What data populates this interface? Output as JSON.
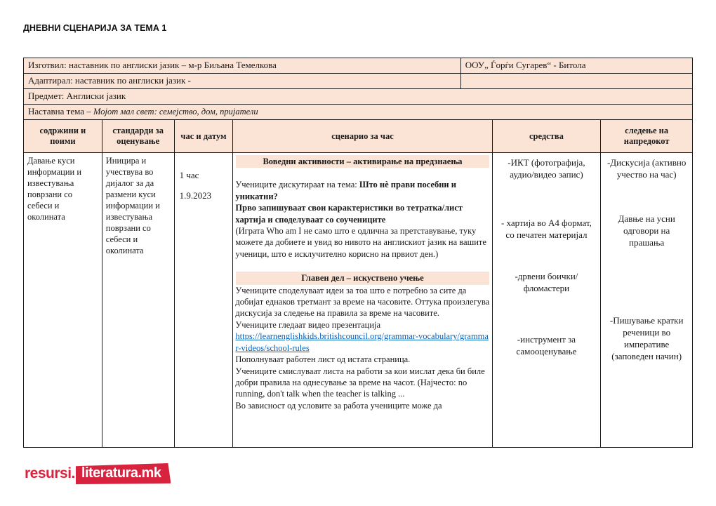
{
  "page_title": "ДНЕВНИ СЦЕНАРИЈА ЗА ТЕМА 1",
  "info": {
    "prepared_by": "Изготвил: наставник по англиски јазик – м-р Биљана Темелкова",
    "school": "ООУ„ Ѓорѓи Сугарев“ - Битола",
    "adapted_by": "Адаптирал: наставник по англиски јазик -",
    "subject": "Предмет: Англиски јазик",
    "theme_label": "Наставна тема –",
    "theme_value": "Мојот мал свет: семејство, дом, пријатели"
  },
  "columns": {
    "c1": "содржини и поими",
    "c2": "стандарди за оценување",
    "c3": "час и датум",
    "c4": "сценарио за час",
    "c5": "средства",
    "c6": "следење на напредокот"
  },
  "row": {
    "contents": "Давање куси информации и известувања поврзани со себеси и околината",
    "standards": "Иницира и учествува во дијалог за да размени куси информации и известувања поврзани со себеси и околината",
    "time": {
      "hours": "1 час",
      "date": "1.9.2023"
    },
    "scenario": {
      "intro_heading": "Воведни активности – активирање на предзнаења",
      "p1_normal": "Учениците дискутираат на тема: ",
      "p1_bold": "Што нè прави посебни и уникатни?",
      "p2_bold": "Прво запишуваат свои карактеристики во тетратка/лист хартија и споделуваат со соучениците",
      "p3": "(Играта Who am I не само што е одлична за претставување, туку можете да добиете и увид во нивото на англискиот јазик на вашите ученици, што е исклучително корисно на првиот ден.)",
      "main_heading": "Главен дел – искуствено учење",
      "p4": "Учениците споделуваат идеи за тоа што е потребно за сите да добијат еднаков третмант за време на часовите. Оттука произлегува дискусија за следење на правила за време на часовите.",
      "p5": "Учениците гледаат видео презентација",
      "link": "https://learnenglishkids.britishcouncil.org/grammar-vocabulary/grammar-videos/school-rules",
      "p6": "Пополнуваат работен лист од истата страница.",
      "p7": "Учениците смислуваат листа на работи за кои мислат дека би биле добри правила на однесување за време на часот. (Најчесто: no running, don't talk when the teacher is talking ...",
      "p8": "Во зависност од условите за работа учениците може да"
    },
    "resources": [
      "-ИКТ  (фотографија, аудио/видео запис)",
      "- хартија во А4 формат, со печатен материјал",
      "-дрвени боички/ фломастери",
      "-инструмент за самооценување"
    ],
    "progress": [
      "-Дискусија (активно учество на час)",
      "Давње на усни одговори на прашања",
      "-Пишување кратки реченици во императиве (заповеден начин)"
    ]
  },
  "logo": {
    "prefix": "resursi.",
    "brand": "literatura.mk"
  },
  "colors": {
    "peach": "#fbe4d5",
    "link_blue": "#0563c1",
    "logo_red": "#d8233f"
  }
}
